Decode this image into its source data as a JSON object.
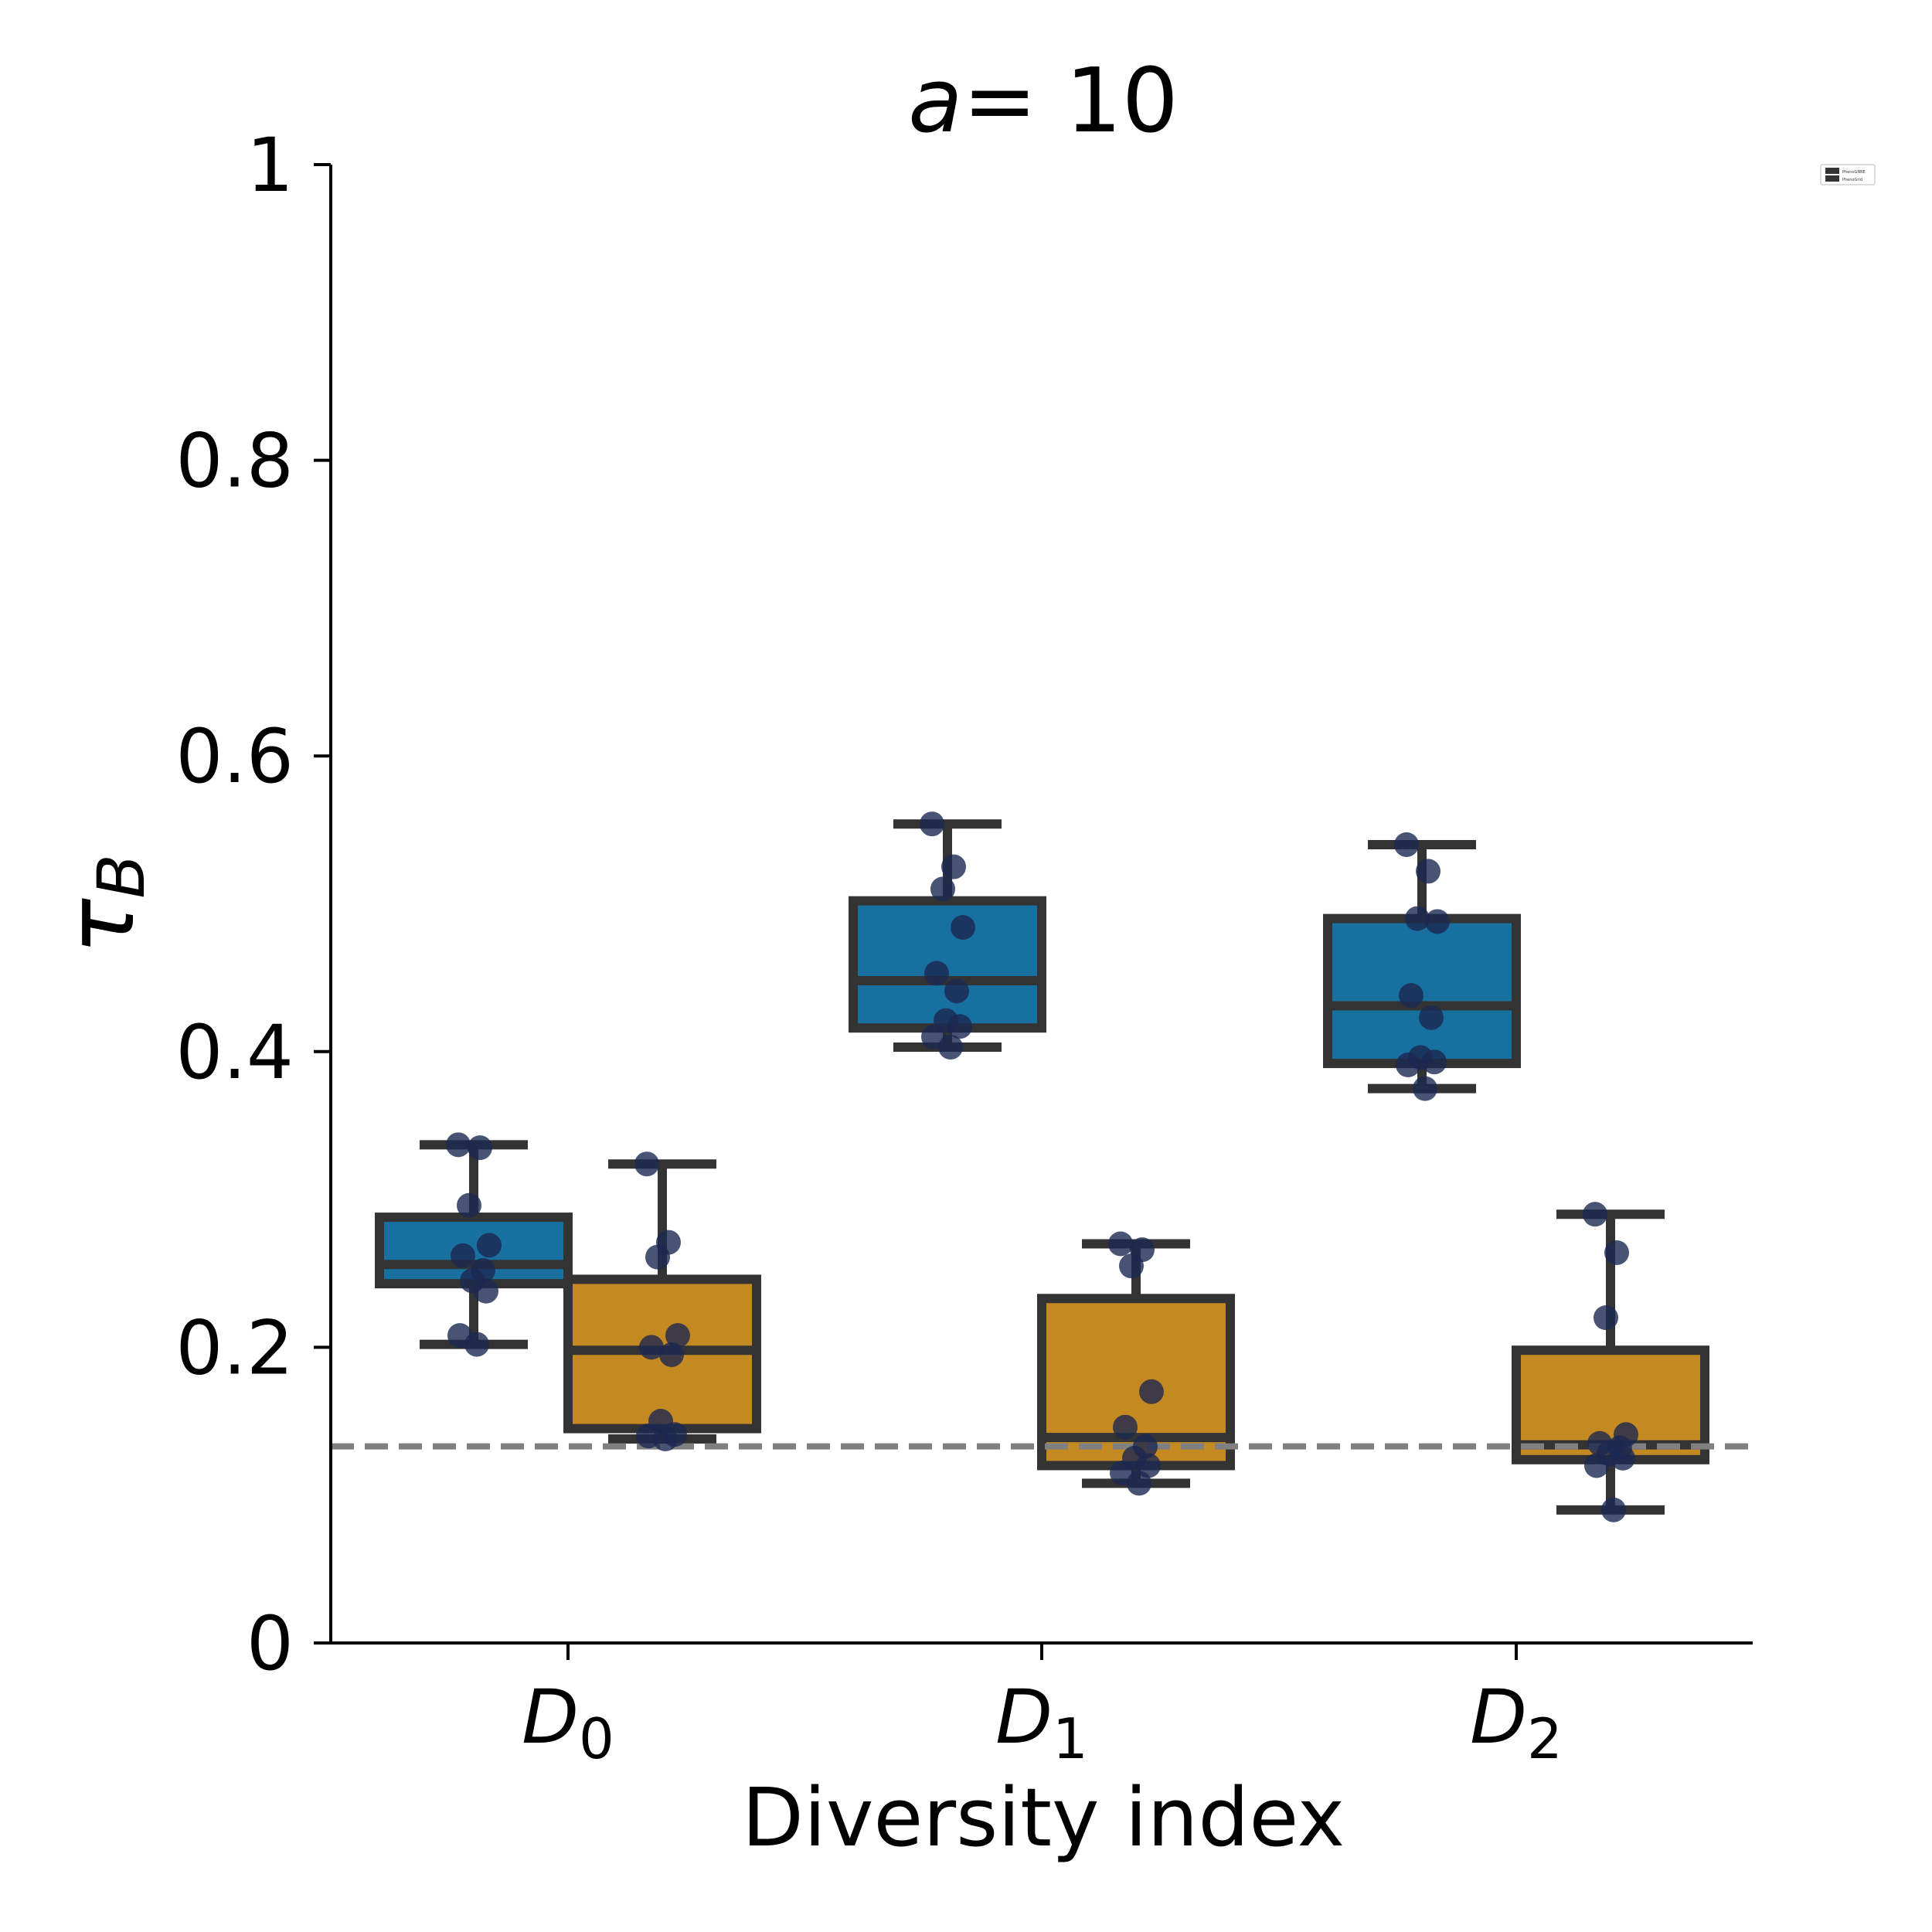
{
  "chart_data": {
    "type": "box",
    "title_var": "a",
    "title_eq": "= 10",
    "xlabel": "Diversity index",
    "ylabel_sym": "τ",
    "ylabel_sub": "B",
    "categories": [
      {
        "base": "D",
        "sub": "0"
      },
      {
        "base": "D",
        "sub": "1"
      },
      {
        "base": "D",
        "sub": "2"
      }
    ],
    "yticks": [
      {
        "value": 0,
        "label": "0"
      },
      {
        "value": 0.2,
        "label": "0.2"
      },
      {
        "value": 0.4,
        "label": "0.4"
      },
      {
        "value": 0.6,
        "label": "0.6"
      },
      {
        "value": 0.8,
        "label": "0.8"
      },
      {
        "value": 1.0,
        "label": "1"
      }
    ],
    "ylim": [
      0,
      1.0
    ],
    "reference_line": 0.133,
    "legend_placement": "top-right",
    "series": [
      {
        "name": "PhenoGNRE",
        "color": "#1870a0",
        "boxes": [
          {
            "whislo": 0.202,
            "q1": 0.243,
            "med": 0.256,
            "q3": 0.288,
            "whishi": 0.337,
            "points": [
              0.337,
              0.335,
              0.296,
              0.269,
              0.262,
              0.252,
              0.245,
              0.238,
              0.208,
              0.202
            ]
          },
          {
            "whislo": 0.403,
            "q1": 0.416,
            "med": 0.448,
            "q3": 0.502,
            "whishi": 0.554,
            "points": [
              0.554,
              0.525,
              0.51,
              0.484,
              0.453,
              0.441,
              0.421,
              0.417,
              0.41,
              0.403
            ]
          },
          {
            "whislo": 0.375,
            "q1": 0.392,
            "med": 0.431,
            "q3": 0.49,
            "whishi": 0.54,
            "points": [
              0.54,
              0.522,
              0.49,
              0.488,
              0.438,
              0.423,
              0.396,
              0.393,
              0.391,
              0.375
            ]
          }
        ]
      },
      {
        "name": "PhenoGrid",
        "color": "#c58921",
        "boxes": [
          {
            "whislo": 0.138,
            "q1": 0.145,
            "med": 0.198,
            "q3": 0.246,
            "whishi": 0.324,
            "points": [
              0.324,
              0.271,
              0.261,
              0.208,
              0.2,
              0.195,
              0.15,
              0.141,
              0.14,
              0.138
            ]
          },
          {
            "whislo": 0.108,
            "q1": 0.12,
            "med": 0.139,
            "q3": 0.233,
            "whishi": 0.27,
            "points": [
              0.27,
              0.266,
              0.255,
              0.17,
              0.146,
              0.133,
              0.125,
              0.12,
              0.115,
              0.108
            ]
          },
          {
            "whislo": 0.09,
            "q1": 0.124,
            "med": 0.134,
            "q3": 0.198,
            "whishi": 0.29,
            "points": [
              0.29,
              0.264,
              0.22,
              0.141,
              0.135,
              0.132,
              0.128,
              0.125,
              0.12,
              0.09
            ]
          }
        ]
      }
    ],
    "colors": {
      "edge": "#333333",
      "point": "#1c2850",
      "refline": "#808080",
      "axis": "#000000"
    }
  }
}
